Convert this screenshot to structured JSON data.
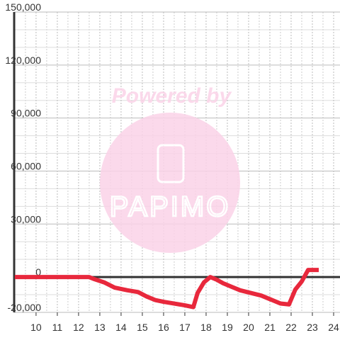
{
  "chart_data": {
    "type": "line",
    "watermark": {
      "text": "Powered by",
      "logo": "PAPIMO"
    },
    "x": [
      9,
      12.5,
      12.7,
      13.2,
      13.7,
      14.3,
      14.8,
      15.2,
      15.6,
      16,
      16.5,
      17,
      17.4,
      17.6,
      17.9,
      18.2,
      18.5,
      18.8,
      19.2,
      19.6,
      20.1,
      20.6,
      21.1,
      21.5,
      21.9,
      22.2,
      22.5,
      22.8,
      23.3
    ],
    "series": [
      {
        "color": "#e8283c",
        "values": [
          0,
          0,
          -1000,
          -3000,
          -6000,
          -7500,
          -8500,
          -11000,
          -13000,
          -14000,
          -15000,
          -16000,
          -17000,
          -9000,
          -3000,
          0,
          -1500,
          -3500,
          -5500,
          -7500,
          -9000,
          -10500,
          -13000,
          -15000,
          -15500,
          -7000,
          -2500,
          4000,
          4000
        ]
      }
    ],
    "xlim": [
      8.97,
      24.3
    ],
    "xticks": [
      10,
      11,
      12,
      13,
      14,
      15,
      16,
      17,
      18,
      19,
      20,
      21,
      22,
      23,
      24
    ],
    "x_minor_grid": [
      9.5,
      10.5,
      11.5,
      12.5,
      13.5,
      14.5,
      15.5,
      16.5,
      17.5,
      18.5,
      19.5,
      20.5,
      21.5,
      22.5,
      23.5
    ],
    "ylim": [
      -20000,
      150000
    ],
    "yticks": [
      {
        "value": -20000,
        "label": "-20,000"
      },
      0,
      {
        "value": 30000,
        "label": "30,000"
      },
      {
        "value": 60000,
        "label": "60,000"
      },
      {
        "value": 90000,
        "label": "90,000"
      },
      {
        "value": 120000,
        "label": "120,000"
      },
      {
        "value": 150000,
        "label": "150,000"
      }
    ],
    "y_minor_grid": [
      -10000,
      10000,
      20000,
      40000,
      50000,
      70000,
      80000,
      100000,
      110000,
      130000,
      140000
    ],
    "grid": true
  }
}
